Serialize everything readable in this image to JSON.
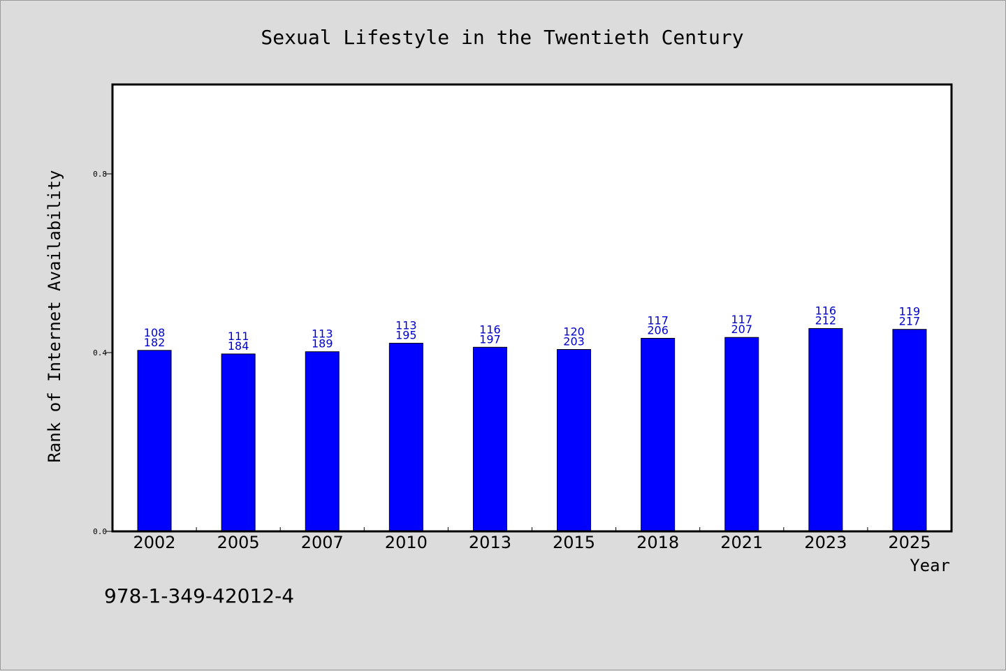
{
  "footer_code": "978-1-349-42012-4",
  "colors": {
    "background": "#dcdcdc",
    "plot_bg": "#ffffff",
    "bar": "#0000ff",
    "label": "#0000cc"
  },
  "chart_data": {
    "type": "bar",
    "title": "Sexual Lifestyle in the Twentieth Century",
    "xlabel": "Year",
    "ylabel": "Rank of Internet Availability",
    "categories": [
      "2002",
      "2005",
      "2007",
      "2010",
      "2013",
      "2015",
      "2018",
      "2021",
      "2023",
      "2025"
    ],
    "values": [
      0.405,
      0.397,
      0.402,
      0.421,
      0.412,
      0.407,
      0.432,
      0.434,
      0.454,
      0.452
    ],
    "data_labels_top": [
      "108",
      "111",
      "113",
      "113",
      "116",
      "120",
      "117",
      "117",
      "116",
      "119"
    ],
    "data_labels_bottom": [
      "182",
      "184",
      "189",
      "195",
      "197",
      "203",
      "206",
      "207",
      "212",
      "217"
    ],
    "yticks": [
      "0.0",
      "0.4",
      "0.8"
    ],
    "ylim": [
      0,
      1.0
    ],
    "grid": false
  }
}
